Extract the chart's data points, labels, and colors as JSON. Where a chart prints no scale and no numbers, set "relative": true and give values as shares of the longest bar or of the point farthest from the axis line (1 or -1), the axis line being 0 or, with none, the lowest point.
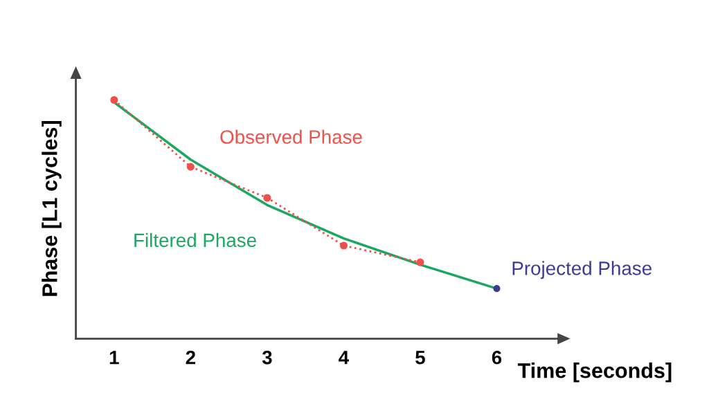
{
  "chart_data": {
    "type": "line",
    "relative": true,
    "xlabel": "Time [seconds]",
    "ylabel": "Phase [L1 cycles]",
    "xlim": [
      0.5,
      6.8
    ],
    "xticks": [
      1,
      2,
      3,
      4,
      5,
      6
    ],
    "grid": false,
    "legend": false,
    "series": [
      {
        "name": "Observed Phase",
        "color": "#f0504a",
        "line_style": "dotted",
        "marker": "circle",
        "x": [
          1,
          2,
          3,
          4,
          5
        ],
        "values": [
          1.0,
          0.72,
          0.59,
          0.39,
          0.32
        ]
      },
      {
        "name": "Filtered Phase",
        "color": "#1aa760",
        "line_style": "solid",
        "marker": "none",
        "x": [
          1,
          2,
          3,
          4,
          5,
          6
        ],
        "values": [
          0.99,
          0.75,
          0.56,
          0.42,
          0.31,
          0.21
        ]
      },
      {
        "name": "Projected Phase",
        "color": "#3d3a96",
        "type": "scatter",
        "marker": "circle",
        "x": [
          6
        ],
        "values": [
          0.21
        ]
      }
    ]
  }
}
